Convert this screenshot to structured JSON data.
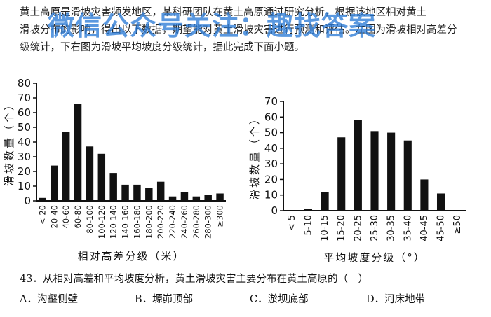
{
  "intro": {
    "line1": "黄土高原是滑坡灾害频发地区，某科研团队在黄土高原通过研究分析，根据该地区相对黄土",
    "line2": "滑坡分布的影响，得出以下数据，期望能对黄土滑坡灾害进行预测和评估。左图为滑坡相对高差分",
    "line3": "级统计，下右图为滑坡平均坡度分级统计，据此完成下面小题。"
  },
  "watermark": "微信公众号关注：趣找答案",
  "chart_data": [
    {
      "type": "bar",
      "ylabel": "滑坡数量（个）",
      "xlabel": "相对高差分级（米）",
      "ylim": [
        0,
        80
      ],
      "yticks": [
        "0",
        "10",
        "20",
        "30",
        "40",
        "50",
        "60",
        "70",
        "80"
      ],
      "categories": [
        "< 20",
        "20-40",
        "40-60",
        "60-80",
        "80-100",
        "100-120",
        "120-140",
        "140-160",
        "160-180",
        "180-200",
        "200-220",
        "220-240",
        "240-260",
        "260-280",
        "280-300",
        "≥300"
      ],
      "values": [
        2,
        24,
        47,
        66,
        37,
        32,
        19,
        11,
        11,
        9,
        13,
        3,
        6,
        3,
        4,
        5
      ]
    },
    {
      "type": "bar",
      "ylabel": "滑坡数量（个）",
      "xlabel": "平均坡度分级（°）",
      "ylim": [
        0,
        70
      ],
      "yticks": [
        "0",
        "10",
        "20",
        "30",
        "40",
        "50",
        "60",
        "70"
      ],
      "categories": [
        "< 5",
        "5-10",
        "10-15",
        "15-20",
        "20-25",
        "25-30",
        "30-35",
        "35-40",
        "40-45",
        "45-50",
        "≥50"
      ],
      "values": [
        0,
        1,
        12,
        47,
        58,
        51,
        50,
        45,
        20,
        11,
        0
      ]
    }
  ],
  "question": {
    "stem": "43．从相对高差和平均坡度分析，黄土滑坡灾害主要分布在黄土高原的（　）",
    "options": [
      {
        "label": "A．沟壑侧壁"
      },
      {
        "label": "B．塬峁顶部"
      },
      {
        "label": "C．淤坝底部"
      },
      {
        "label": "D．河床地带"
      }
    ]
  }
}
